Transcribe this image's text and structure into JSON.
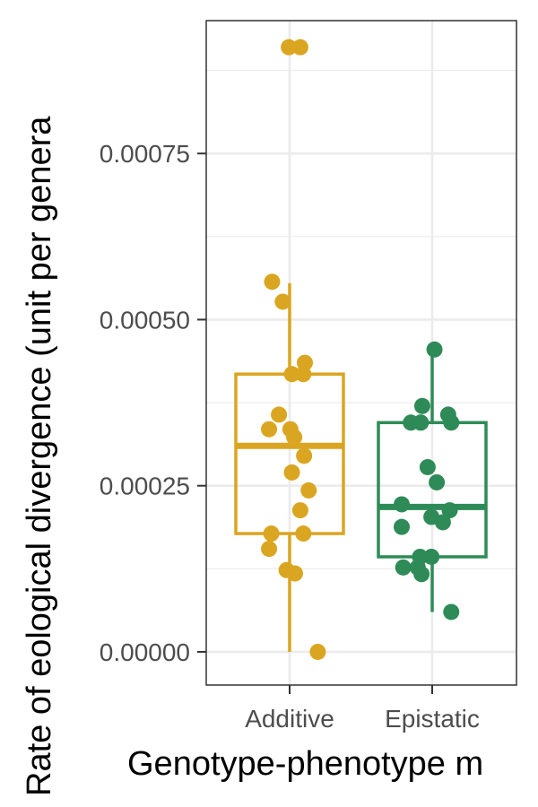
{
  "chart_data": {
    "type": "box",
    "xlabel": "Genotype-phenotype m",
    "ylabel": "Rate of eological divergence (unit per genera",
    "categories": [
      "Additive",
      "Epistatic"
    ],
    "ylim": [
      -5e-05,
      0.00095
    ],
    "yticks": [
      0,
      0.00025,
      0.0005,
      0.00075
    ],
    "ytick_labels": [
      "0.00000",
      "0.00025",
      "0.00050",
      "0.00075"
    ],
    "grid": true,
    "series": [
      {
        "category": "Additive",
        "color": "#DAA520",
        "box": {
          "whisker_low": 0.0,
          "q1": 0.000178,
          "median": 0.00031,
          "q3": 0.000418,
          "whisker_high": 0.000555
        },
        "points": [
          {
            "jitter": -0.01,
            "y": 0.00091
          },
          {
            "jitter": 0.14,
            "y": 0.00091
          },
          {
            "jitter": -0.23,
            "y": 0.000557
          },
          {
            "jitter": -0.09,
            "y": 0.000527
          },
          {
            "jitter": 0.2,
            "y": 0.000435
          },
          {
            "jitter": 0.03,
            "y": 0.000418
          },
          {
            "jitter": 0.18,
            "y": 0.000418
          },
          {
            "jitter": -0.14,
            "y": 0.000357
          },
          {
            "jitter": -0.27,
            "y": 0.000335
          },
          {
            "jitter": 0.01,
            "y": 0.000335
          },
          {
            "jitter": 0.06,
            "y": 0.000323
          },
          {
            "jitter": 0.19,
            "y": 0.000295
          },
          {
            "jitter": 0.03,
            "y": 0.00027
          },
          {
            "jitter": 0.25,
            "y": 0.000243
          },
          {
            "jitter": 0.14,
            "y": 0.000213
          },
          {
            "jitter": -0.24,
            "y": 0.000178
          },
          {
            "jitter": 0.18,
            "y": 0.000178
          },
          {
            "jitter": -0.27,
            "y": 0.000155
          },
          {
            "jitter": -0.04,
            "y": 0.000123
          },
          {
            "jitter": 0.07,
            "y": 0.000118
          },
          {
            "jitter": 0.37,
            "y": 0.0
          }
        ]
      },
      {
        "category": "Epistatic",
        "color": "#2E8B57",
        "box": {
          "whisker_low": 6e-05,
          "q1": 0.000143,
          "median": 0.000218,
          "q3": 0.000345,
          "whisker_high": 0.000455
        },
        "points": [
          {
            "jitter": 0.03,
            "y": 0.000455
          },
          {
            "jitter": -0.13,
            "y": 0.00037
          },
          {
            "jitter": 0.21,
            "y": 0.000357
          },
          {
            "jitter": -0.28,
            "y": 0.000345
          },
          {
            "jitter": -0.15,
            "y": 0.000345
          },
          {
            "jitter": -0.15,
            "y": 0.000345
          },
          {
            "jitter": 0.25,
            "y": 0.000345
          },
          {
            "jitter": -0.06,
            "y": 0.000278
          },
          {
            "jitter": 0.06,
            "y": 0.000255
          },
          {
            "jitter": -0.4,
            "y": 0.000222
          },
          {
            "jitter": 0.23,
            "y": 0.000213
          },
          {
            "jitter": -0.01,
            "y": 0.000203
          },
          {
            "jitter": 0.14,
            "y": 0.000195
          },
          {
            "jitter": -0.4,
            "y": 0.000188
          },
          {
            "jitter": -0.38,
            "y": 0.000127
          },
          {
            "jitter": -0.19,
            "y": 0.000127
          },
          {
            "jitter": -0.16,
            "y": 0.000143
          },
          {
            "jitter": -0.14,
            "y": 0.000117
          },
          {
            "jitter": -0.01,
            "y": 0.000143
          },
          {
            "jitter": 0.25,
            "y": 6e-05
          }
        ]
      }
    ]
  }
}
